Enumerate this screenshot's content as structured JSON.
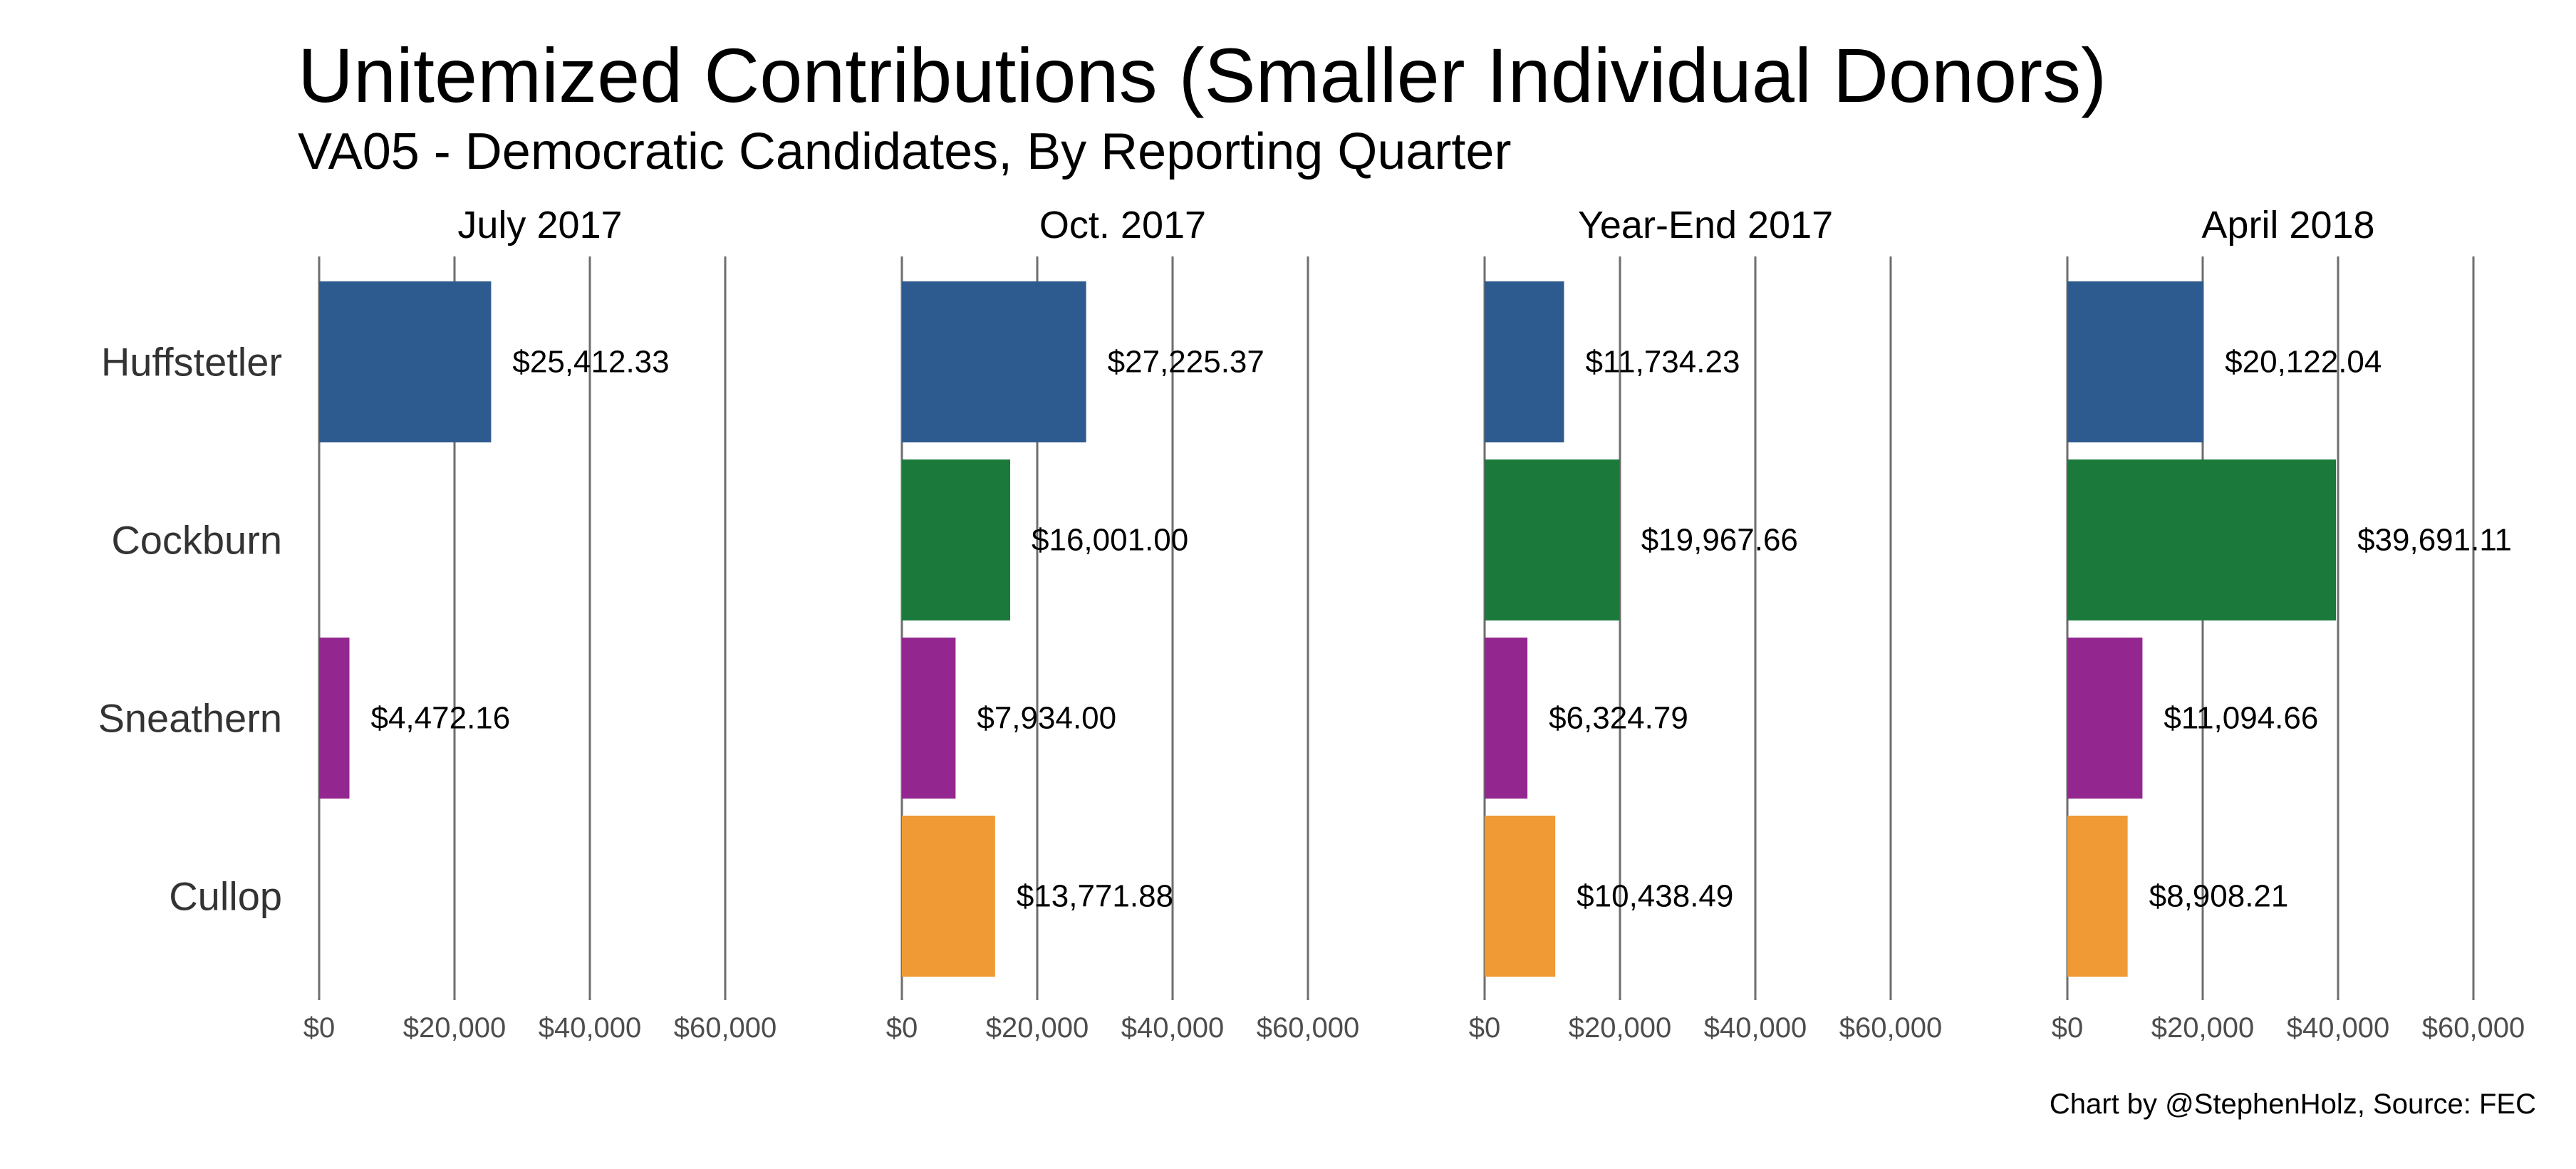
{
  "title": "Unitemized Contributions (Smaller Individual Donors)",
  "subtitle": "VA05 - Democratic Candidates, By Reporting Quarter",
  "caption": "Chart by @StephenHolz, Source: FEC",
  "colors": {
    "Huffstetler": "#2e5b8f",
    "Cockburn": "#1b7a3b",
    "Sneathern": "#93278f",
    "Cullop": "#ef9a35",
    "gridline": "#6e6e6e",
    "tick_text": "#4d4d4d"
  },
  "chart_data": {
    "type": "bar",
    "orientation": "horizontal",
    "facet_by": "reporting quarter",
    "categories": [
      "Huffstetler",
      "Cockburn",
      "Sneathern",
      "Cullop"
    ],
    "xlim": [
      0,
      60000
    ],
    "x_ticks": [
      0,
      20000,
      40000,
      60000
    ],
    "x_tick_labels": [
      "$0",
      "$20,000",
      "$40,000",
      "$60,000"
    ],
    "grid": "vertical lines at x ticks",
    "legend": "none",
    "panels": [
      {
        "name": "July 2017",
        "values": [
          25412.33,
          null,
          4472.16,
          null
        ],
        "labels": [
          "$25,412.33",
          "",
          "$4,472.16",
          ""
        ]
      },
      {
        "name": "Oct. 2017",
        "values": [
          27225.37,
          16001.0,
          7934.0,
          13771.88
        ],
        "labels": [
          "$27,225.37",
          "$16,001.00",
          "$7,934.00",
          "$13,771.88"
        ]
      },
      {
        "name": "Year-End 2017",
        "values": [
          11734.23,
          19967.66,
          6324.79,
          10438.49
        ],
        "labels": [
          "$11,734.23",
          "$19,967.66",
          "$6,324.79",
          "$10,438.49"
        ]
      },
      {
        "name": "April 2018",
        "values": [
          20122.04,
          39691.11,
          11094.66,
          8908.21
        ],
        "labels": [
          "$20,122.04",
          "$39,691.11",
          "$11,094.66",
          "$8,908.21"
        ]
      }
    ]
  }
}
